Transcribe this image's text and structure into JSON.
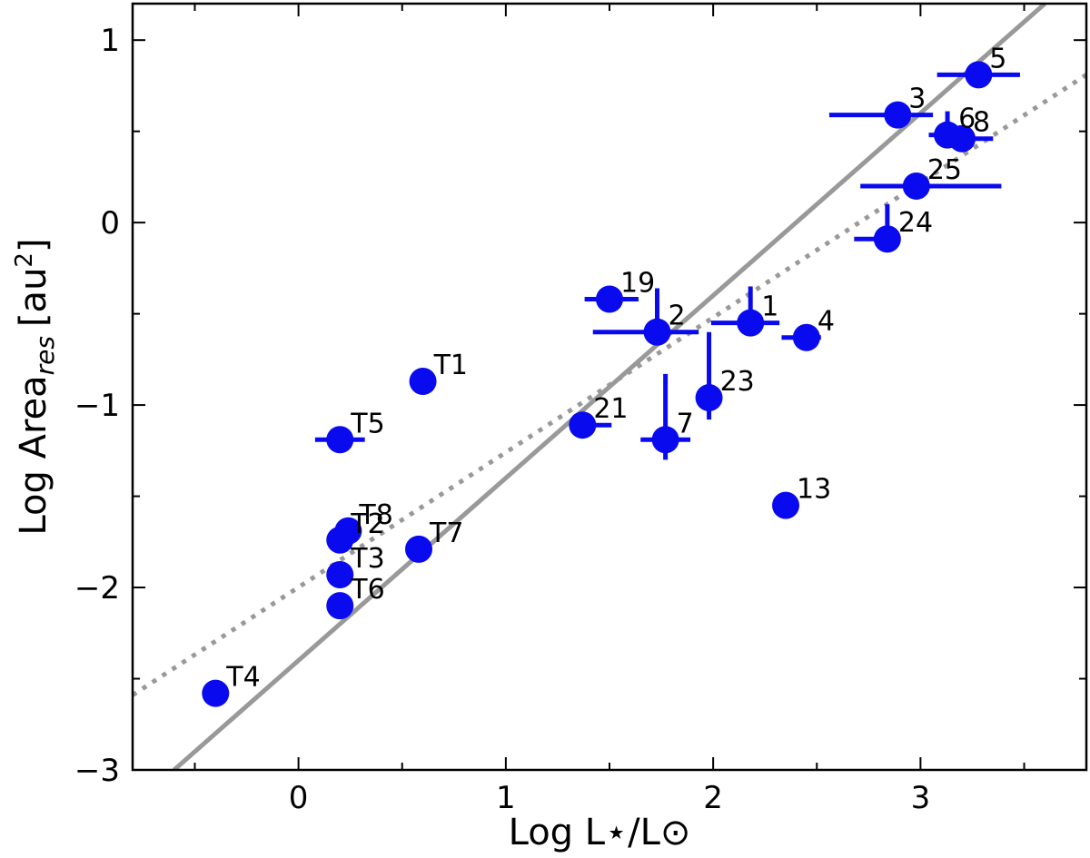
{
  "chart_data": {
    "type": "scatter",
    "title": "",
    "xlabel": "Log L⋆/L⊙",
    "ylabel": "Log Area",
    "ylabel_sub": "res",
    "ylabel_unit": "[au",
    "ylabel_unit_sup": "2",
    "ylabel_unit_end": "]",
    "xlim": [
      -0.8,
      3.8
    ],
    "ylim": [
      -3,
      1.2
    ],
    "grid": false,
    "x_ticks": [
      0,
      1,
      2,
      3
    ],
    "x_tick_labels": [
      "0",
      "1",
      "2",
      "3"
    ],
    "y_ticks": [
      1,
      0,
      -1,
      -2,
      -3
    ],
    "y_tick_labels": [
      "1",
      "0",
      "−1",
      "−2",
      "−3"
    ],
    "colors": {
      "points": "#0a0aee",
      "fit": "#999999"
    },
    "fit_lines": [
      {
        "style": "solid",
        "x": [
          -0.6,
          3.6
        ],
        "y": [
          -3.0,
          1.2
        ]
      },
      {
        "style": "dotted",
        "x": [
          -0.8,
          3.8
        ],
        "y": [
          -2.59,
          0.81
        ]
      }
    ],
    "points": [
      {
        "label": "5",
        "x": 3.28,
        "y": 0.81,
        "xerr": [
          0.2,
          0.2
        ],
        "yerr": [
          0,
          0
        ]
      },
      {
        "label": "3",
        "x": 2.89,
        "y": 0.59,
        "xerr": [
          0.33,
          0.17
        ],
        "yerr": [
          0,
          0
        ]
      },
      {
        "label": "6",
        "x": 3.13,
        "y": 0.48,
        "xerr": [
          0.09,
          0.0
        ],
        "yerr": [
          0.04,
          0.13
        ]
      },
      {
        "label": "8",
        "x": 3.2,
        "y": 0.46,
        "xerr": [
          0.0,
          0.15
        ],
        "yerr": [
          0,
          0
        ]
      },
      {
        "label": "25",
        "x": 2.98,
        "y": 0.2,
        "xerr": [
          0.27,
          0.41
        ],
        "yerr": [
          0,
          0
        ]
      },
      {
        "label": "24",
        "x": 2.84,
        "y": -0.09,
        "xerr": [
          0.16,
          0.0
        ],
        "yerr": [
          0.0,
          0.19
        ]
      },
      {
        "label": "19",
        "x": 1.5,
        "y": -0.42,
        "xerr": [
          0.12,
          0.14
        ],
        "yerr": [
          0,
          0
        ]
      },
      {
        "label": "2",
        "x": 1.73,
        "y": -0.6,
        "xerr": [
          0.31,
          0.2
        ],
        "yerr": [
          0.0,
          0.24
        ]
      },
      {
        "label": "1",
        "x": 2.18,
        "y": -0.55,
        "xerr": [
          0.19,
          0.14
        ],
        "yerr": [
          0.0,
          0.2
        ]
      },
      {
        "label": "4",
        "x": 2.45,
        "y": -0.63,
        "xerr": [
          0.12,
          0.07
        ],
        "yerr": [
          0,
          0
        ]
      },
      {
        "label": "T1",
        "x": 0.6,
        "y": -0.87,
        "xerr": [
          0,
          0
        ],
        "yerr": [
          0,
          0
        ]
      },
      {
        "label": "23",
        "x": 1.98,
        "y": -0.96,
        "xerr": [
          0,
          0
        ],
        "yerr": [
          0.12,
          0.36
        ]
      },
      {
        "label": "21",
        "x": 1.37,
        "y": -1.11,
        "xerr": [
          0,
          0.14
        ],
        "yerr": [
          0,
          0
        ]
      },
      {
        "label": "7",
        "x": 1.77,
        "y": -1.19,
        "xerr": [
          0.12,
          0.12
        ],
        "yerr": [
          0.11,
          0.36
        ]
      },
      {
        "label": "T5",
        "x": 0.2,
        "y": -1.19,
        "xerr": [
          0.12,
          0.12
        ],
        "yerr": [
          0,
          0
        ]
      },
      {
        "label": "13",
        "x": 2.35,
        "y": -1.55,
        "xerr": [
          0,
          0
        ],
        "yerr": [
          0,
          0
        ]
      },
      {
        "label": "T8",
        "x": 0.24,
        "y": -1.69,
        "xerr": [
          0,
          0
        ],
        "yerr": [
          0,
          0
        ]
      },
      {
        "label": "T2",
        "x": 0.2,
        "y": -1.74,
        "xerr": [
          0,
          0
        ],
        "yerr": [
          0,
          0
        ]
      },
      {
        "label": "T7",
        "x": 0.58,
        "y": -1.79,
        "xerr": [
          0,
          0
        ],
        "yerr": [
          0,
          0
        ]
      },
      {
        "label": "T3",
        "x": 0.2,
        "y": -1.93,
        "xerr": [
          0,
          0
        ],
        "yerr": [
          0,
          0
        ]
      },
      {
        "label": "T6",
        "x": 0.2,
        "y": -2.1,
        "xerr": [
          0,
          0
        ],
        "yerr": [
          0,
          0
        ]
      },
      {
        "label": "T4",
        "x": -0.4,
        "y": -2.58,
        "xerr": [
          0,
          0
        ],
        "yerr": [
          0,
          0
        ]
      }
    ]
  }
}
